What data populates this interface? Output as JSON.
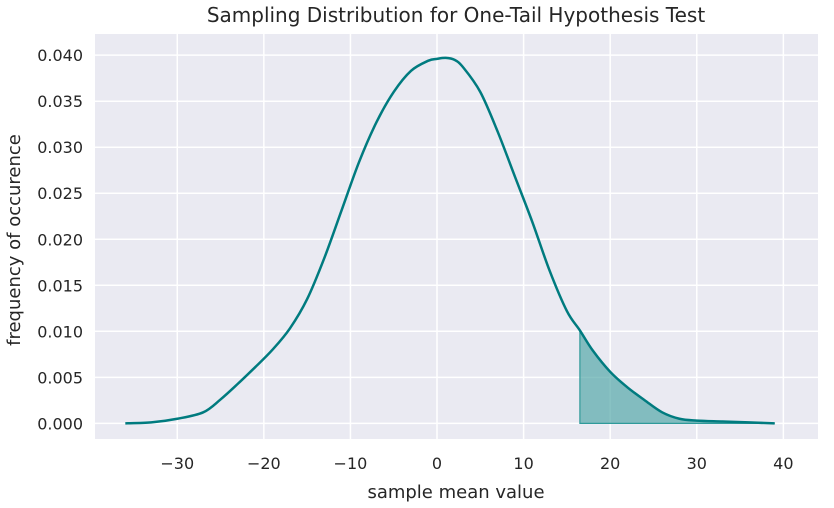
{
  "chart_data": {
    "type": "area",
    "title": "Sampling Distribution for One-Tail Hypothesis Test",
    "xlabel": "sample mean value",
    "ylabel": "frequency of occurence",
    "xlim": [
      -39.5,
      44
    ],
    "ylim": [
      -0.0017,
      0.0423
    ],
    "xticks": [
      -30,
      -20,
      -10,
      0,
      10,
      20,
      30,
      40
    ],
    "xtick_labels": [
      "−30",
      "−20",
      "−10",
      "0",
      "10",
      "20",
      "30",
      "40"
    ],
    "yticks": [
      0.0,
      0.005,
      0.01,
      0.015,
      0.02,
      0.025,
      0.03,
      0.035,
      0.04
    ],
    "ytick_labels": [
      "0.000",
      "0.005",
      "0.010",
      "0.015",
      "0.020",
      "0.025",
      "0.030",
      "0.035",
      "0.040"
    ],
    "grid": true,
    "series": [
      {
        "x": [
          -36,
          -33,
          -30,
          -27,
          -25,
          -23,
          -21,
          -19,
          -17,
          -15,
          -13,
          -11,
          -9,
          -7,
          -5,
          -3,
          -1,
          0,
          1,
          2,
          3,
          5,
          7,
          9,
          11,
          13,
          15,
          16.5,
          18,
          20,
          22,
          24,
          26,
          28,
          30,
          33,
          36,
          39
        ],
        "y": [
          0.0,
          0.0001,
          0.0005,
          0.0012,
          0.0026,
          0.0043,
          0.0061,
          0.008,
          0.0103,
          0.0135,
          0.018,
          0.0232,
          0.0284,
          0.0327,
          0.036,
          0.0383,
          0.0394,
          0.0396,
          0.0397,
          0.0395,
          0.0387,
          0.036,
          0.0317,
          0.0268,
          0.0219,
          0.0166,
          0.0122,
          0.0101,
          0.0079,
          0.0056,
          0.0039,
          0.0025,
          0.0012,
          0.0005,
          0.0003,
          0.0002,
          0.0001,
          0.0
        ]
      }
    ],
    "shaded_region": {
      "from_x": 16.5,
      "to_x": 39
    },
    "colors": {
      "line": "#007b7f",
      "fill": "#4aa3a3",
      "background": "#eaeaf2",
      "grid": "#ffffff"
    }
  }
}
